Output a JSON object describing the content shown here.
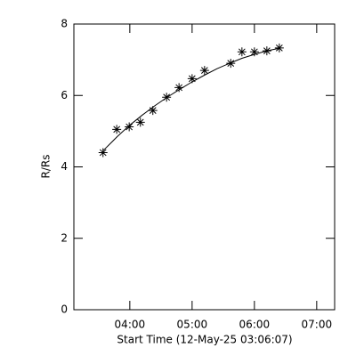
{
  "chart_data": {
    "type": "scatter",
    "xlabel": "Start Time (12-May-25 03:06:07)",
    "ylabel": "R/Rs",
    "xlim": [
      3.102,
      7.288
    ],
    "ylim": [
      0,
      8
    ],
    "xticks": [
      {
        "value": 4,
        "label": "04:00"
      },
      {
        "value": 5,
        "label": "05:00"
      },
      {
        "value": 6,
        "label": "06:00"
      },
      {
        "value": 7,
        "label": "07:00"
      }
    ],
    "yticks": [
      0,
      2,
      4,
      6,
      8
    ],
    "series": [
      {
        "style": "asterisk",
        "color": "#000000",
        "x": [
          3.57,
          3.79,
          3.99,
          4.17,
          4.37,
          4.59,
          4.79,
          5.0,
          5.2,
          5.62,
          5.8,
          6.0,
          6.2,
          6.4
        ],
        "values": [
          4.4,
          5.05,
          5.12,
          5.25,
          5.58,
          5.95,
          6.22,
          6.47,
          6.7,
          6.9,
          7.22,
          7.22,
          7.25,
          7.33
        ]
      },
      {
        "style": "line",
        "color": "#000000",
        "x": [
          3.57,
          3.8,
          4.0,
          4.2,
          4.4,
          4.6,
          4.8,
          5.0,
          5.2,
          5.4,
          5.6,
          5.8,
          6.0,
          6.2,
          6.4
        ],
        "values": [
          4.45,
          4.85,
          5.17,
          5.45,
          5.71,
          5.95,
          6.17,
          6.38,
          6.57,
          6.75,
          6.9,
          7.04,
          7.15,
          7.25,
          7.32
        ]
      }
    ]
  }
}
